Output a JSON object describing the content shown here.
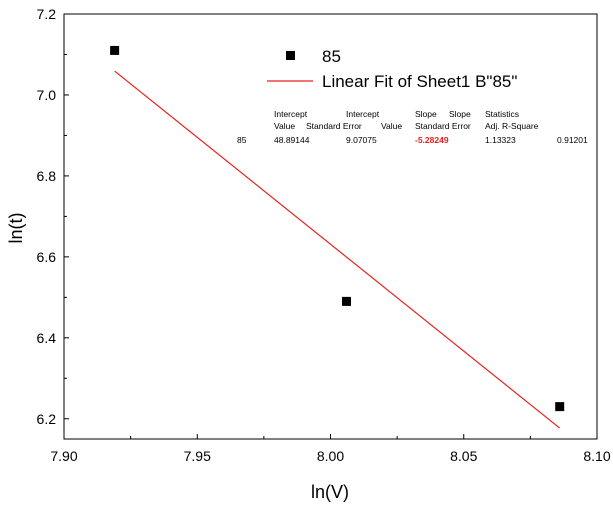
{
  "chart_data": {
    "type": "scatter",
    "xlabel": "ln(V)",
    "ylabel": "ln(t)",
    "xlim": [
      7.9,
      8.1
    ],
    "ylim": [
      6.15,
      7.2
    ],
    "xticks": [
      7.9,
      7.95,
      8.0,
      8.05,
      8.1
    ],
    "xtick_labels": [
      "7.90",
      "7.95",
      "8.00",
      "8.05",
      "8.10"
    ],
    "yticks": [
      6.2,
      6.4,
      6.6,
      6.8,
      7.0,
      7.2
    ],
    "ytick_labels": [
      "6.2",
      "6.4",
      "6.6",
      "6.8",
      "7.0",
      "7.2"
    ],
    "grid": false,
    "legend_position": "top-right",
    "series": [
      {
        "name": "85",
        "kind": "scatter",
        "marker": "square",
        "color": "#000000",
        "x": [
          7.919,
          8.006,
          8.086
        ],
        "y": [
          7.11,
          6.49,
          6.23
        ]
      },
      {
        "name": "Linear Fit of Sheet1 B\"85\"",
        "kind": "line",
        "color": "#e8201c",
        "x": [
          7.919,
          8.086
        ],
        "y": [
          7.059,
          6.177
        ]
      }
    ],
    "fit_table": {
      "header_row1": [
        "Intercept",
        "Intercept",
        "Slope",
        "Slope",
        "Statistics"
      ],
      "header_row2": [
        "Value",
        "Standard Error",
        "Value",
        "Standard Error",
        "Adj. R-Square"
      ],
      "row_label": "85",
      "values": [
        "48.89144",
        "9.07075",
        "-5.28249",
        "1.13323",
        "0.91201"
      ]
    }
  }
}
